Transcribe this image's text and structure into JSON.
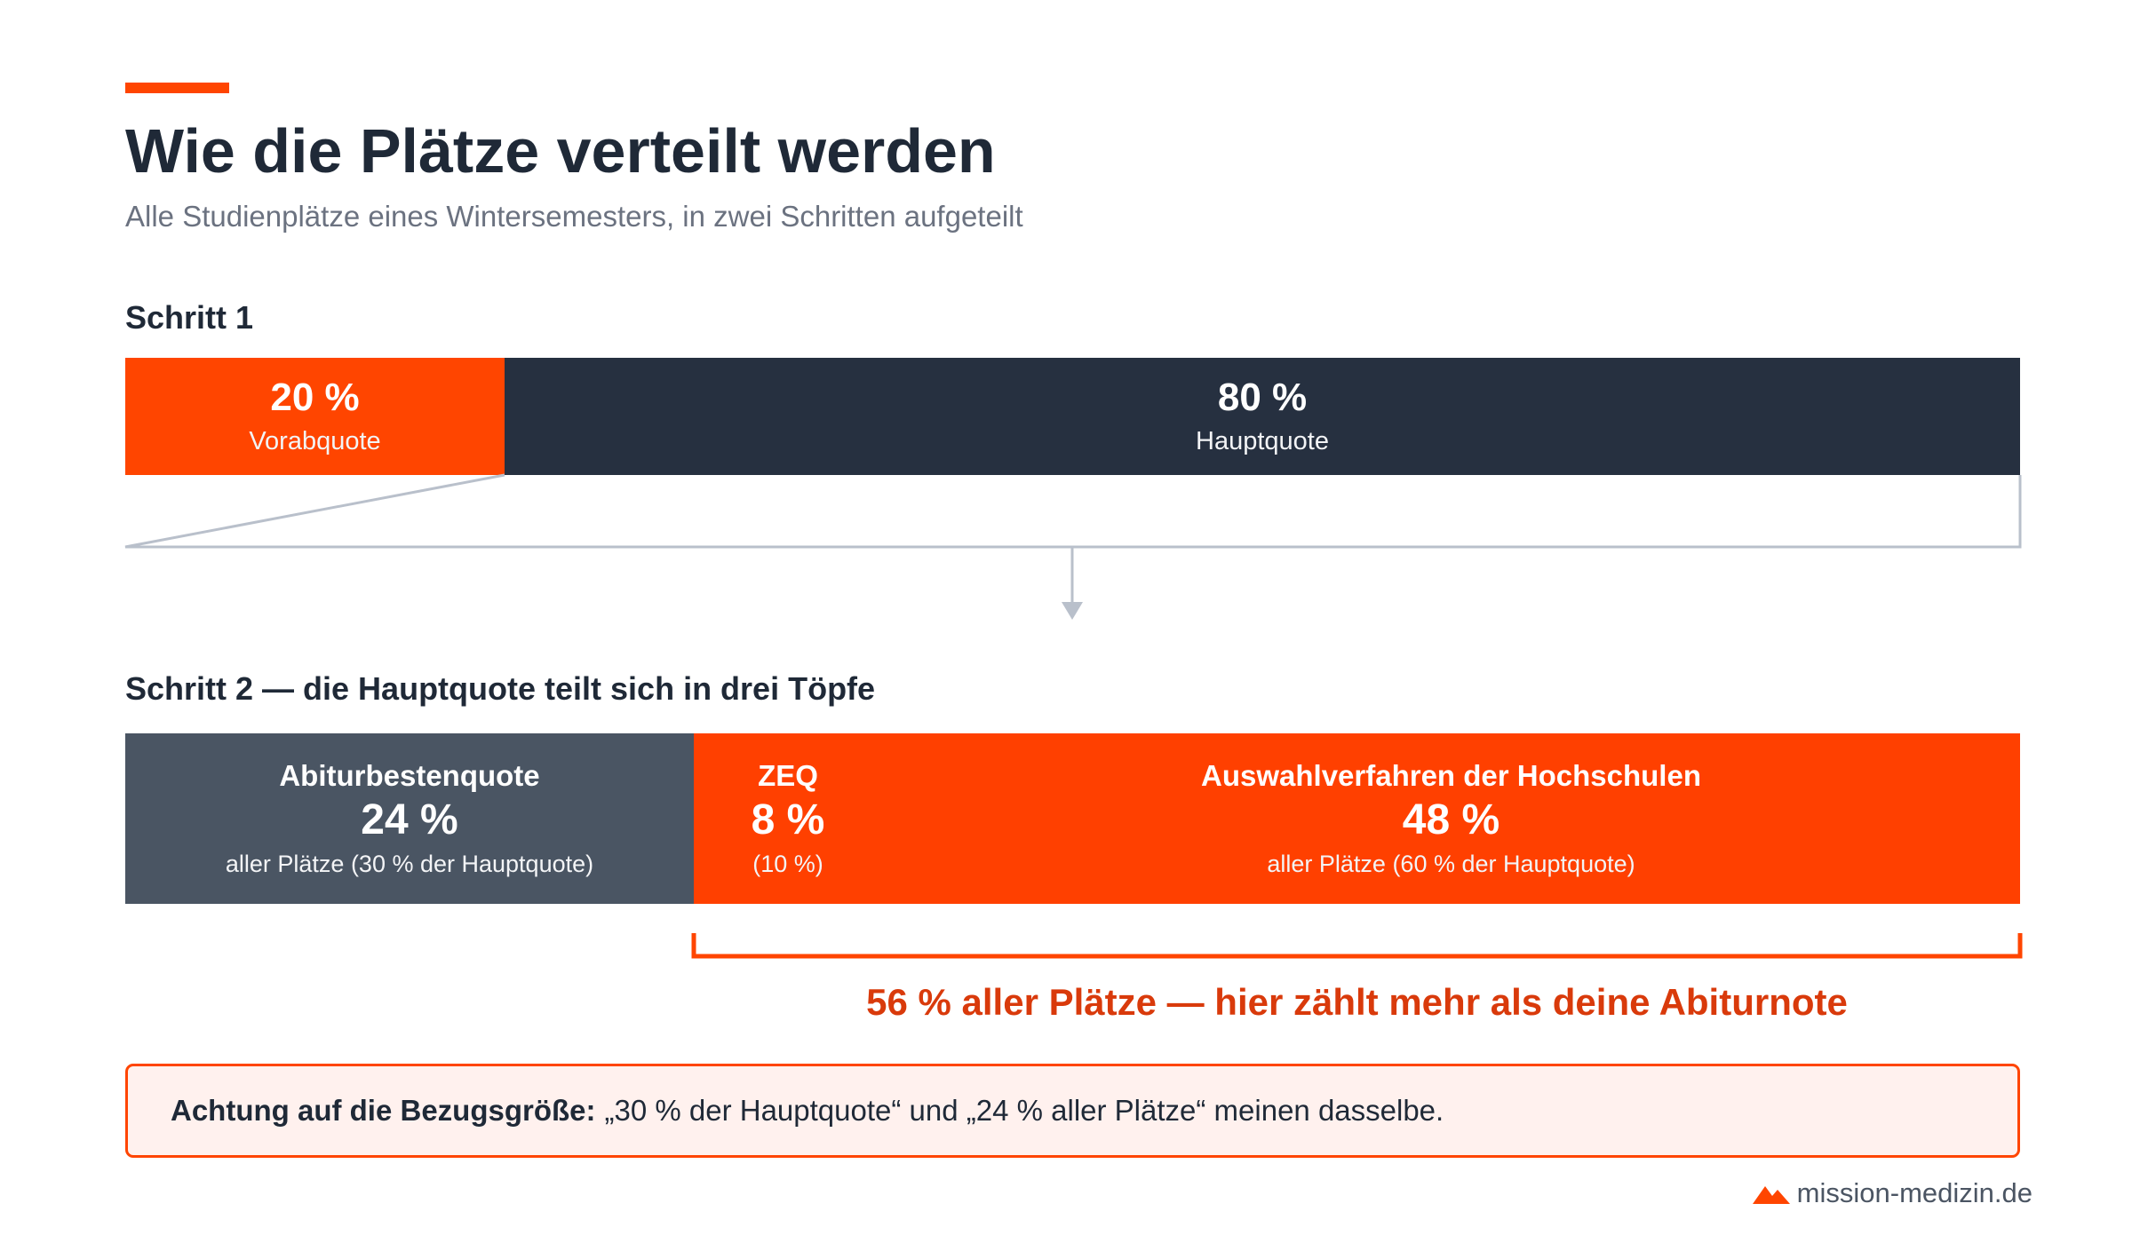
{
  "header": {
    "title": "Wie die Plätze verteilt werden",
    "subtitle": "Alle Studienplätze eines Wintersemesters, in zwei Schritten aufgeteilt"
  },
  "step1": {
    "label": "Schritt 1",
    "segments": [
      {
        "value": "20 %",
        "name": "Vorabquote"
      },
      {
        "value": "80 %",
        "name": "Hauptquote"
      }
    ]
  },
  "step2": {
    "label": "Schritt 2 — die Hauptquote teilt sich in drei Töpfe",
    "segments": [
      {
        "name": "Abiturbestenquote",
        "value": "24 %",
        "note": "aller Plätze (30 % der Hauptquote)"
      },
      {
        "name": "ZEQ",
        "value": "8 %",
        "note": "(10 %)"
      },
      {
        "name": "Auswahlverfahren der Hochschulen",
        "value": "48 %",
        "note": "aller Plätze (60 % der Hauptquote)"
      }
    ],
    "bracket_label": "56 % aller Plätze — hier zählt mehr als deine Abiturnote"
  },
  "note": {
    "bold": "Achtung auf die Bezugsgröße:",
    "text": "„30 % der Hauptquote“ und „24 % aller Plätze“ meinen dasselbe."
  },
  "footer": {
    "brand": "mission-medizin.de"
  },
  "colors": {
    "accent": "#ff4500",
    "dark": "#263040",
    "slate": "#4a5563",
    "connector": "#b9c0cb"
  },
  "chart_data": {
    "type": "bar",
    "series": [
      {
        "name": "Schritt 1",
        "categories": [
          "Vorabquote",
          "Hauptquote"
        ],
        "values": [
          20,
          80
        ]
      },
      {
        "name": "Schritt 2",
        "categories": [
          "Abiturbestenquote",
          "ZEQ",
          "Auswahlverfahren der Hochschulen"
        ],
        "values": [
          24,
          8,
          48
        ]
      }
    ]
  }
}
